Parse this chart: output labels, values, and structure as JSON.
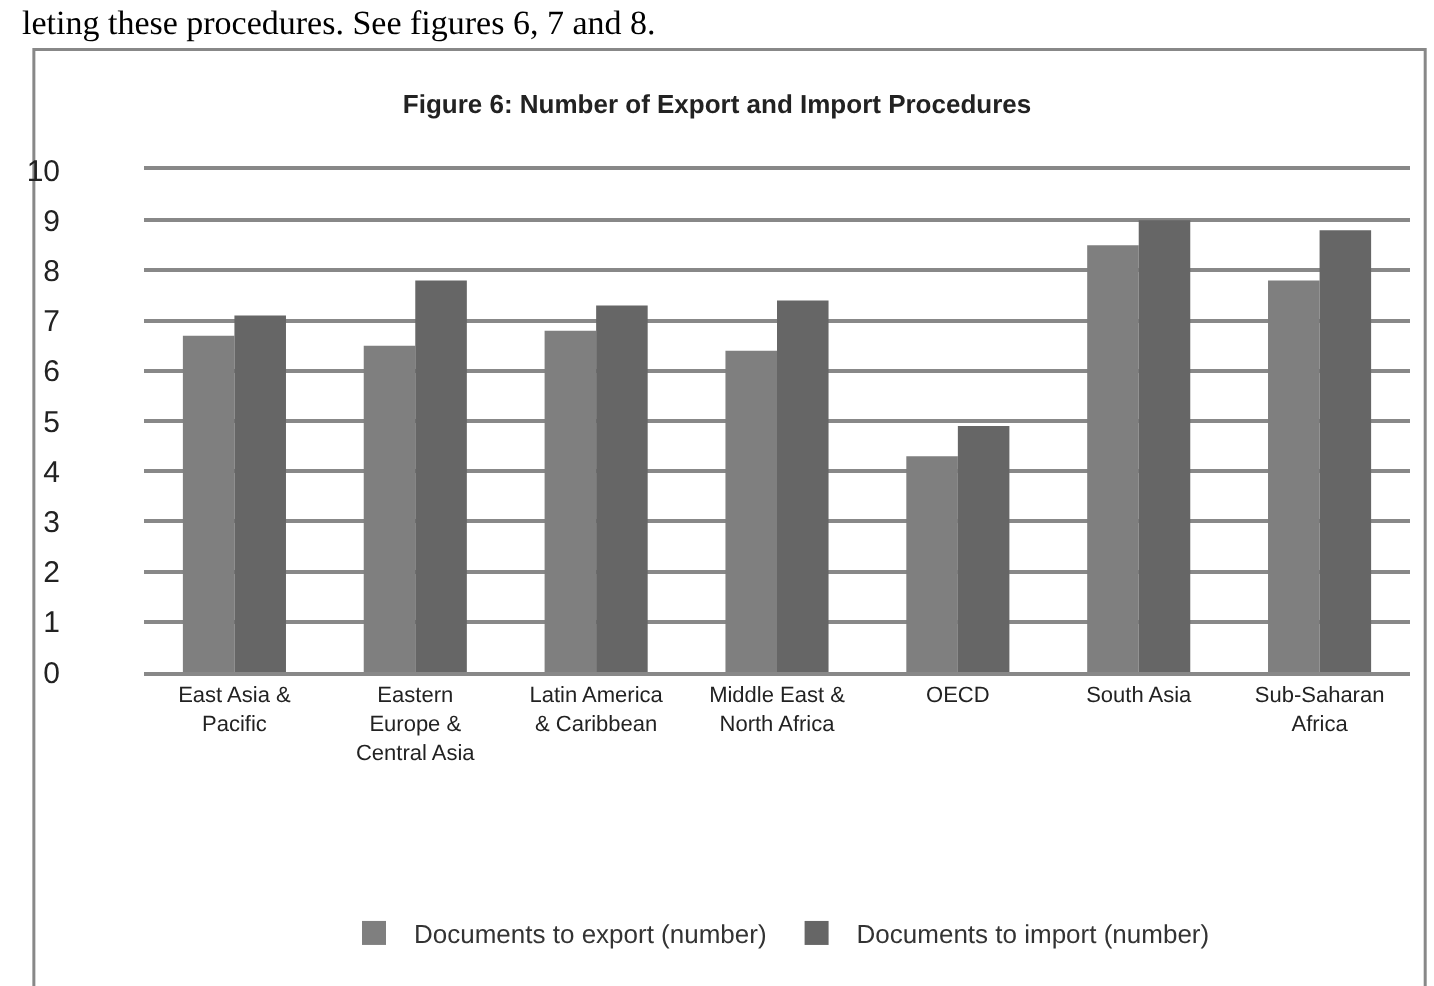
{
  "chart_data": {
    "type": "bar",
    "title": "Figure 6: Number of Export and Import Procedures",
    "annotations": [
      "leting these procedures. See figures 6, 7 and 8."
    ],
    "categories": [
      "East Asia & Pacific",
      "Eastern Europe & Central Asia",
      "Latin America & Caribbean",
      "Middle East & North Africa",
      "OECD",
      "South Asia",
      "Sub-Saharan Africa"
    ],
    "series": [
      {
        "name": "Documents to export (number)",
        "color": "#7f7f7f",
        "values": [
          6.7,
          6.5,
          6.8,
          6.4,
          4.3,
          8.5,
          7.8
        ]
      },
      {
        "name": "Documents to import (number)",
        "color": "#666666",
        "values": [
          7.1,
          7.8,
          7.3,
          7.4,
          4.9,
          9.0,
          8.8
        ]
      }
    ],
    "ylim": [
      0,
      10
    ],
    "yticks": [
      0,
      1,
      2,
      3,
      4,
      5,
      6,
      7,
      8,
      9,
      10
    ],
    "grid": "y",
    "legend": "bottom"
  }
}
